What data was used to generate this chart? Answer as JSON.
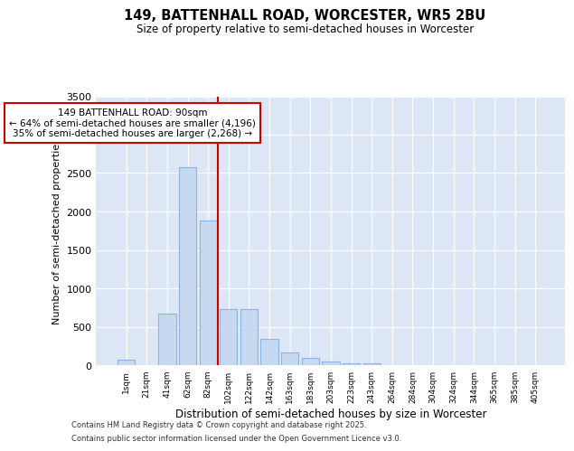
{
  "title1": "149, BATTENHALL ROAD, WORCESTER, WR5 2BU",
  "title2": "Size of property relative to semi-detached houses in Worcester",
  "xlabel": "Distribution of semi-detached houses by size in Worcester",
  "ylabel": "Number of semi-detached properties",
  "categories": [
    "1sqm",
    "21sqm",
    "41sqm",
    "62sqm",
    "82sqm",
    "102sqm",
    "122sqm",
    "142sqm",
    "163sqm",
    "183sqm",
    "203sqm",
    "223sqm",
    "243sqm",
    "264sqm",
    "284sqm",
    "304sqm",
    "324sqm",
    "344sqm",
    "365sqm",
    "385sqm",
    "405sqm"
  ],
  "values": [
    75,
    0,
    670,
    2580,
    1880,
    730,
    730,
    340,
    170,
    100,
    50,
    20,
    20,
    0,
    0,
    0,
    0,
    0,
    0,
    0,
    0
  ],
  "bar_color": "#c6d9f0",
  "bar_edge_color": "#8db4e2",
  "bg_color": "#dce6f5",
  "vline_x": 4.5,
  "vline_color": "#cc0000",
  "annotation_title": "149 BATTENHALL ROAD: 90sqm",
  "annotation_line1": "← 64% of semi-detached houses are smaller (4,196)",
  "annotation_line2": "35% of semi-detached houses are larger (2,268) →",
  "annotation_box_color": "#cc0000",
  "ylim": [
    0,
    3500
  ],
  "yticks": [
    0,
    500,
    1000,
    1500,
    2000,
    2500,
    3000,
    3500
  ],
  "footer1": "Contains HM Land Registry data © Crown copyright and database right 2025.",
  "footer2": "Contains public sector information licensed under the Open Government Licence v3.0."
}
